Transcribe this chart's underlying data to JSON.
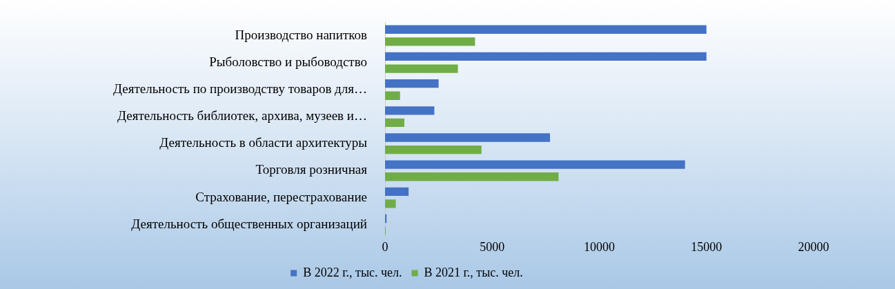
{
  "chart_data": {
    "type": "bar",
    "orientation": "horizontal",
    "categories": [
      "Производство напитков",
      "Рыболовство и рыбоводство",
      "Деятельность по производству товаров для…",
      "Деятельность библиотек, архива, музеев и…",
      "Деятельность в области архитектуры",
      "Торговля розничная",
      "Страхование, перестрахование",
      "Деятельность общественных организаций"
    ],
    "series": [
      {
        "name": "В 2022 г., тыс. чел.",
        "color": "#4472c4",
        "values": [
          15000,
          15000,
          2500,
          2300,
          7700,
          14000,
          1100,
          70
        ]
      },
      {
        "name": "В 2021 г., тыс. чел.",
        "color": "#70ad47",
        "values": [
          4200,
          3400,
          700,
          900,
          4500,
          8100,
          500,
          30
        ]
      }
    ],
    "xlim": [
      0,
      20000
    ],
    "xticks": [
      0,
      5000,
      10000,
      15000,
      20000
    ],
    "grid": false,
    "legend": "bottom"
  }
}
